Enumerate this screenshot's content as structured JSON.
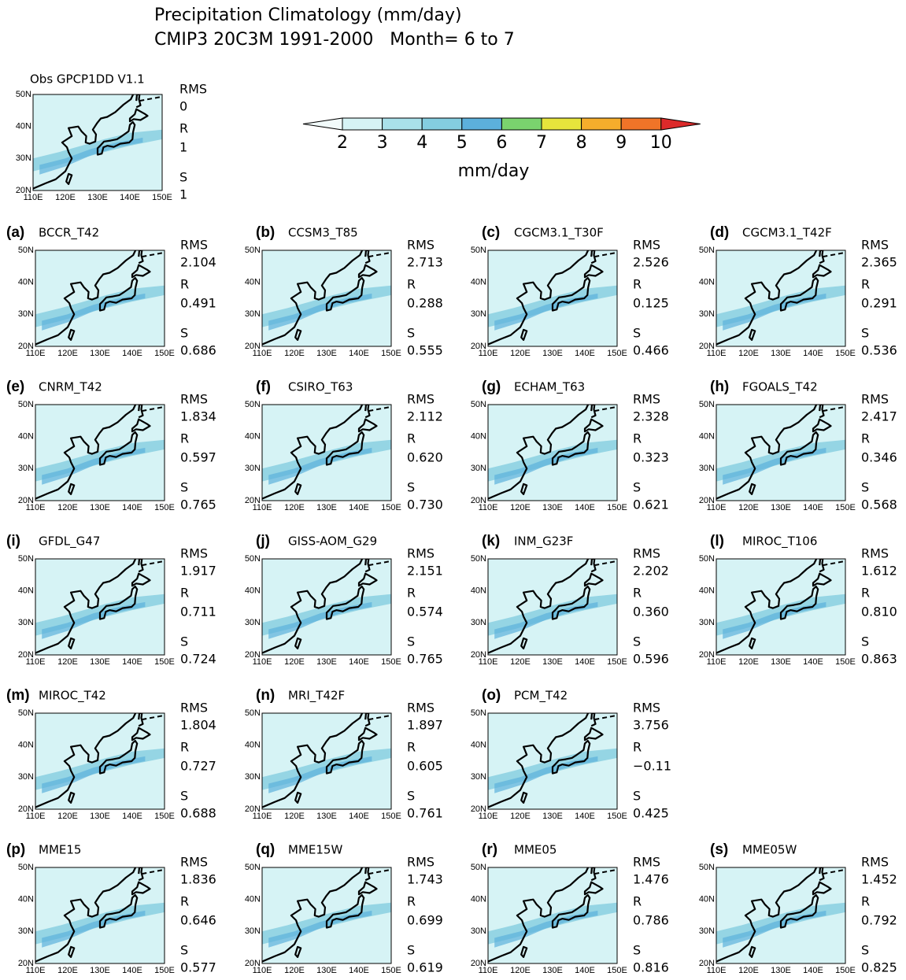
{
  "header": {
    "title_line1": "Precipitation Climatology (mm/day)",
    "title_line2": "CMIP3 20C3M 1991-2000   Month= 6 to 7"
  },
  "colorbar": {
    "ticks": [
      2,
      3,
      4,
      5,
      6,
      7,
      8,
      9,
      10
    ],
    "unit": "mm/day",
    "colors": [
      "#f2fbfb",
      "#d6f3f5",
      "#a9e1ea",
      "#84cde0",
      "#5cb0dc",
      "#7ad36e",
      "#e6e43c",
      "#f5ad2c",
      "#f07428",
      "#dc2a2a"
    ]
  },
  "axes": {
    "lat": [
      "50N",
      "40N",
      "30N",
      "20N"
    ],
    "lon": [
      "110E",
      "120E",
      "130E",
      "140E",
      "150E"
    ]
  },
  "stat_labels": {
    "rms": "RMS",
    "r": "R",
    "s": "S"
  },
  "obs": {
    "name": "Obs GPCP1DD V1.1",
    "rms": "0",
    "r": "1",
    "s": "1"
  },
  "panels": [
    {
      "label": "(a)",
      "name": "BCCR_T42",
      "rms": "2.104",
      "r": "0.491",
      "s": "0.686"
    },
    {
      "label": "(b)",
      "name": "CCSM3_T85",
      "rms": "2.713",
      "r": "0.288",
      "s": "0.555"
    },
    {
      "label": "(c)",
      "name": "CGCM3.1_T30F",
      "rms": "2.526",
      "r": "0.125",
      "s": "0.466"
    },
    {
      "label": "(d)",
      "name": "CGCM3.1_T42F",
      "rms": "2.365",
      "r": "0.291",
      "s": "0.536"
    },
    {
      "label": "(e)",
      "name": "CNRM_T42",
      "rms": "1.834",
      "r": "0.597",
      "s": "0.765"
    },
    {
      "label": "(f)",
      "name": "CSIRO_T63",
      "rms": "2.112",
      "r": "0.620",
      "s": "0.730"
    },
    {
      "label": "(g)",
      "name": "ECHAM_T63",
      "rms": "2.328",
      "r": "0.323",
      "s": "0.621"
    },
    {
      "label": "(h)",
      "name": "FGOALS_T42",
      "rms": "2.417",
      "r": "0.346",
      "s": "0.568"
    },
    {
      "label": "(i)",
      "name": "GFDL_G47",
      "rms": "1.917",
      "r": "0.711",
      "s": "0.724"
    },
    {
      "label": "(j)",
      "name": "GISS-AOM_G29",
      "rms": "2.151",
      "r": "0.574",
      "s": "0.765"
    },
    {
      "label": "(k)",
      "name": "INM_G23F",
      "rms": "2.202",
      "r": "0.360",
      "s": "0.596"
    },
    {
      "label": "(l)",
      "name": "MIROC_T106",
      "rms": "1.612",
      "r": "0.810",
      "s": "0.863"
    },
    {
      "label": "(m)",
      "name": "MIROC_T42",
      "rms": "1.804",
      "r": "0.727",
      "s": "0.688"
    },
    {
      "label": "(n)",
      "name": "MRI_T42F",
      "rms": "1.897",
      "r": "0.605",
      "s": "0.761"
    },
    {
      "label": "(o)",
      "name": "PCM_T42",
      "rms": "3.756",
      "r": "−0.11",
      "s": "0.425"
    },
    {
      "label": "(p)",
      "name": "MME15",
      "rms": "1.836",
      "r": "0.646",
      "s": "0.577"
    },
    {
      "label": "(q)",
      "name": "MME15W",
      "rms": "1.743",
      "r": "0.699",
      "s": "0.619"
    },
    {
      "label": "(r)",
      "name": "MME05",
      "rms": "1.476",
      "r": "0.786",
      "s": "0.816"
    },
    {
      "label": "(s)",
      "name": "MME05W",
      "rms": "1.452",
      "r": "0.792",
      "s": "0.825"
    }
  ]
}
